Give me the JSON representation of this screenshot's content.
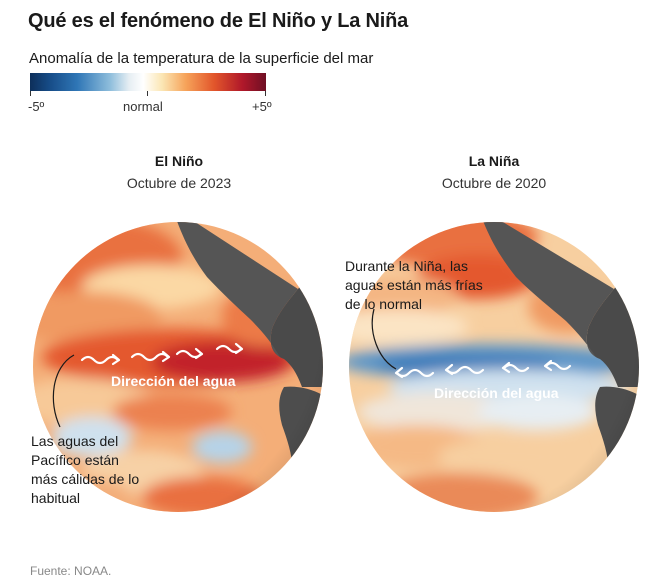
{
  "title": "Qué es el fenómeno de El Niño y La Niña",
  "legend": {
    "title": "Anomalía de la temperatura de la superficie del mar",
    "min_label": "-5º",
    "mid_label": "normal",
    "max_label": "+5º",
    "colors": {
      "cold": "#164b86",
      "neutral": "#ffffff",
      "warm": "#e2562b",
      "hot": "#6f0f24"
    }
  },
  "el_nino": {
    "name": "El Niño",
    "date": "Octubre de 2023",
    "direction_label": "Dirección del agua",
    "annotation": [
      "Las aguas del",
      "Pacífico están",
      "más cálidas de lo",
      "habitual"
    ]
  },
  "la_nina": {
    "name": "La Niña",
    "date": "Octubre de 2020",
    "direction_label": "Dirección del agua",
    "annotation": [
      "Durante la Niña, las",
      "aguas están más frías",
      "de lo normal"
    ]
  },
  "source": "Fuente: NOAA."
}
